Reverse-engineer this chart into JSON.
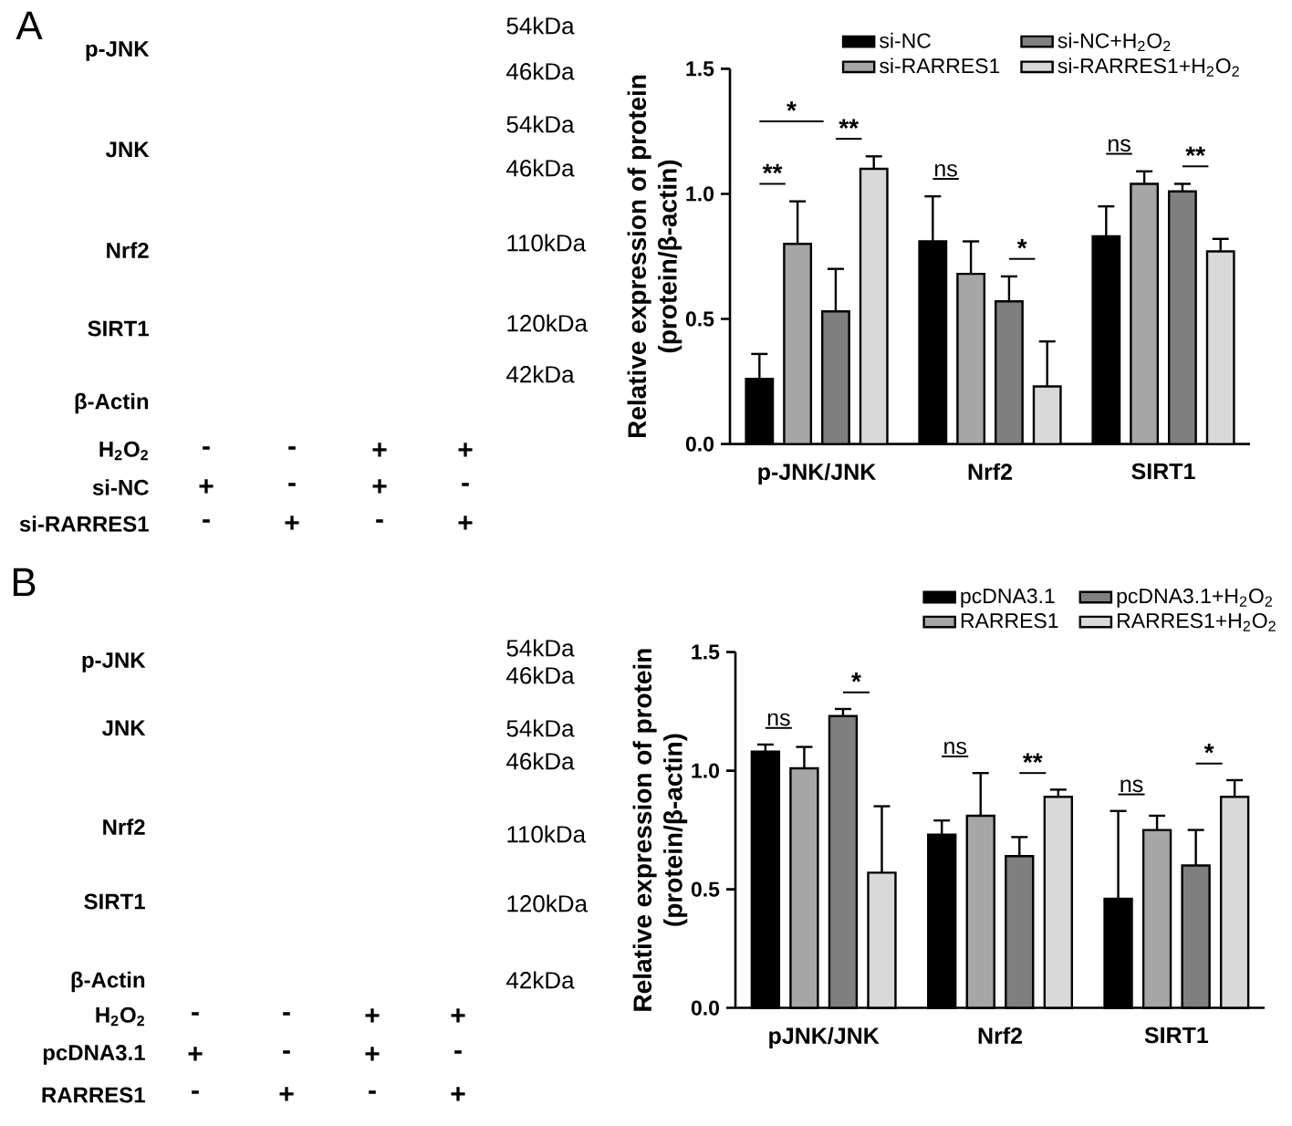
{
  "chart_data": [
    {
      "type": "other",
      "title": "A",
      "annotations": [
        "p-JNK",
        "JNK",
        "Nrf2",
        "SIRT1",
        "β-Actin",
        "54kDa",
        "46kDa",
        "54kDa",
        "46kDa",
        "110kDa",
        "120kDa",
        "42kDa",
        "H$_{2}$O$_{2}$",
        "si-NC",
        "si-RARRES1",
        "-",
        "-",
        "+",
        "+",
        "+",
        "-",
        "+",
        "-",
        "-",
        "+",
        "-",
        "+"
      ]
    },
    {
      "type": "bar",
      "ylabel": "Relative expression of protein (protein/β-actin)",
      "categories": [
        "p-JNK/JNK",
        "Nrf2",
        "SIRT1"
      ],
      "ylim": [
        0,
        1.5
      ],
      "yticks": [
        {
          "value": 0,
          "label": "0.0"
        },
        {
          "value": 0.5,
          "label": "0.5"
        },
        {
          "value": 1,
          "label": "1.0"
        },
        {
          "value": 1.5,
          "label": "1.5"
        }
      ],
      "legend": "top right",
      "series": [
        {
          "name": "si-NC",
          "color": "#000000",
          "values": [
            0.26,
            0.81,
            0.83
          ],
          "errors": [
            [
              0.26,
              0.36
            ],
            [
              0.81,
              0.99
            ],
            [
              0.83,
              0.95
            ]
          ]
        },
        {
          "name": "si-RARRES1",
          "color": "#a6a6a6",
          "values": [
            0.8,
            0.68,
            1.04
          ],
          "errors": [
            [
              0.8,
              0.97
            ],
            [
              0.68,
              0.81
            ],
            [
              1.04,
              1.09
            ]
          ]
        },
        {
          "name": "si-NC+H$_{2}$O$_{2}$",
          "color": "#7f7f7f",
          "values": [
            0.53,
            0.57,
            1.01
          ],
          "errors": [
            [
              0.53,
              0.7
            ],
            [
              0.57,
              0.67
            ],
            [
              1.01,
              1.04
            ]
          ]
        },
        {
          "name": "si-RARRES1+H$_{2}$O$_{2}$",
          "color": "#d9d9d9",
          "values": [
            1.1,
            0.23,
            0.77
          ],
          "errors": [
            [
              1.1,
              1.15
            ],
            [
              0.23,
              0.41
            ],
            [
              0.77,
              0.82
            ]
          ]
        }
      ],
      "annotations": [
        "**",
        "*",
        "**",
        "ns",
        "*",
        "ns",
        "**"
      ]
    },
    {
      "type": "other",
      "title": "B",
      "annotations": [
        "p-JNK",
        "JNK",
        "Nrf2",
        "SIRT1",
        "β-Actin",
        "54kDa",
        "46kDa",
        "54kDa",
        "46kDa",
        "110kDa",
        "120kDa",
        "42kDa",
        "H$_{2}$O$_{2}$",
        "pcDNA3.1",
        "RARRES1",
        "-",
        "-",
        "+",
        "+",
        "+",
        "-",
        "+",
        "-",
        "-",
        "+",
        "-",
        "+"
      ]
    },
    {
      "type": "bar",
      "ylabel": "Relative expression of protein (protein/β-actin)",
      "categories": [
        "pJNK/JNK",
        "Nrf2",
        "SIRT1"
      ],
      "ylim": [
        0,
        1.5
      ],
      "yticks": [
        {
          "value": 0,
          "label": "0.0"
        },
        {
          "value": 0.5,
          "label": "0.5"
        },
        {
          "value": 1,
          "label": "1.0"
        },
        {
          "value": 1.5,
          "label": "1.5"
        }
      ],
      "legend": "top right",
      "series": [
        {
          "name": "pcDNA3.1",
          "color": "#000000",
          "values": [
            1.08,
            0.73,
            0.46
          ],
          "errors": [
            [
              1.08,
              1.11
            ],
            [
              0.73,
              0.79
            ],
            [
              0.46,
              0.83
            ]
          ]
        },
        {
          "name": "RARRES1",
          "color": "#a6a6a6",
          "values": [
            1.01,
            0.81,
            0.75
          ],
          "errors": [
            [
              1.01,
              1.1
            ],
            [
              0.81,
              0.99
            ],
            [
              0.75,
              0.81
            ]
          ]
        },
        {
          "name": "pcDNA3.1+H$_{2}$O$_{2}$",
          "color": "#7f7f7f",
          "values": [
            1.23,
            0.64,
            0.6
          ],
          "errors": [
            [
              1.23,
              1.26
            ],
            [
              0.64,
              0.72
            ],
            [
              0.6,
              0.75
            ]
          ]
        },
        {
          "name": "RARRES1+H$_{2}$O$_{2}$",
          "color": "#d9d9d9",
          "values": [
            0.57,
            0.89,
            0.89
          ],
          "errors": [
            [
              0.57,
              0.85
            ],
            [
              0.89,
              0.92
            ],
            [
              0.89,
              0.96
            ]
          ]
        }
      ],
      "annotations": [
        "ns",
        "*",
        "ns",
        "**",
        "ns",
        "*"
      ]
    }
  ]
}
